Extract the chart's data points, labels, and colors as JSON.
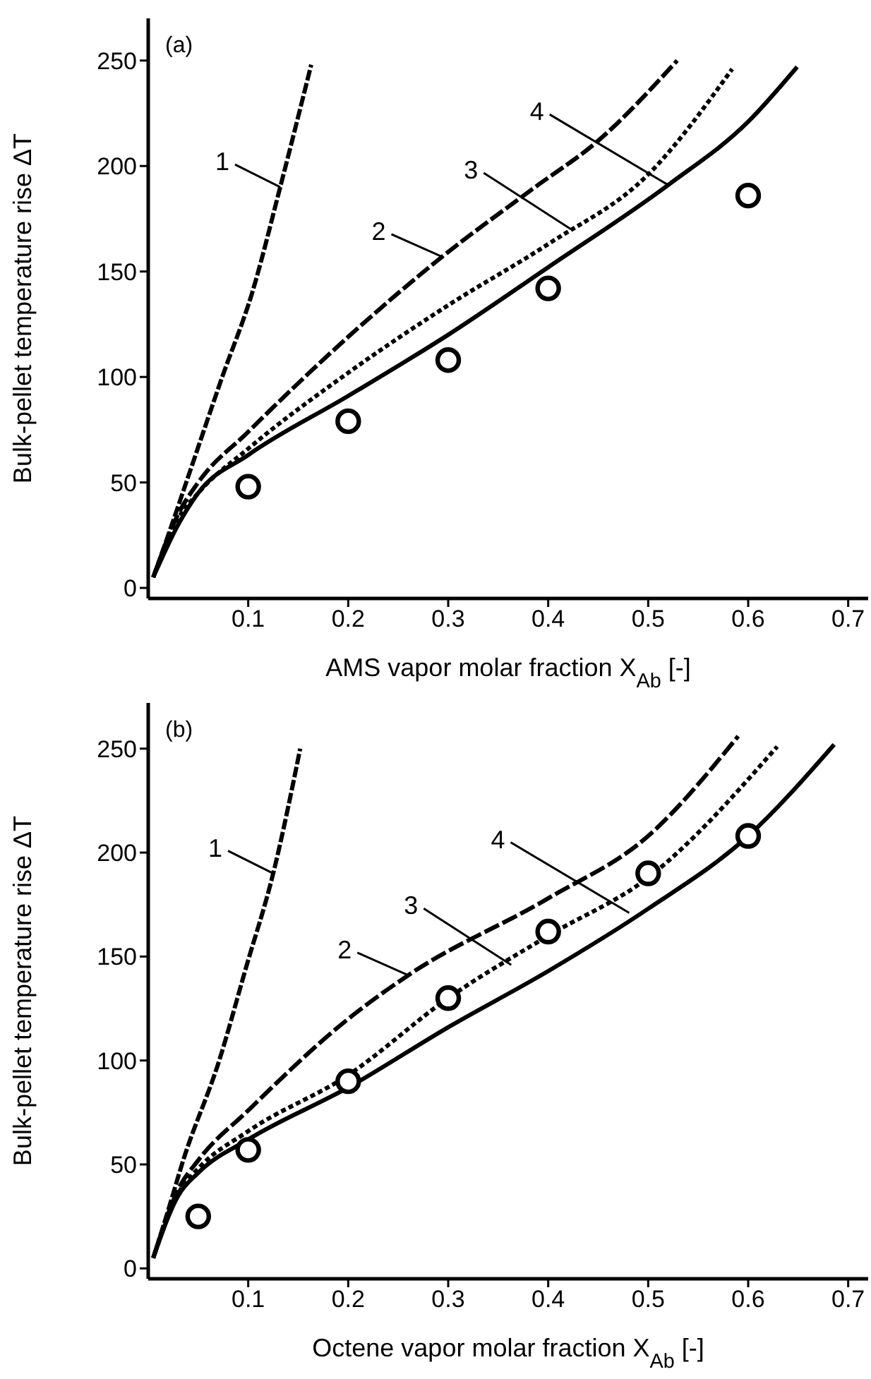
{
  "chart_data": [
    {
      "type": "line",
      "xlabel": "AMS vapor molar fraction X$_{Ab}$ [-]",
      "ylabel": "Bulk-pellet temperature rise ΔT",
      "xlim": [
        0,
        0.72
      ],
      "xticks": [
        0.1,
        0.2,
        0.3,
        0.4,
        0.5,
        0.6,
        0.7
      ],
      "ylim": [
        -5,
        270
      ],
      "yticks": [
        0,
        50,
        100,
        150,
        200,
        250
      ],
      "grid": false,
      "legend": false,
      "series": [
        {
          "type": "line",
          "color": "#000000",
          "line_style": "dashed",
          "marker": "none",
          "x": [
            0.005,
            0.02,
            0.038,
            0.074,
            0.104,
            0.132,
            0.163
          ],
          "values": [
            5,
            25,
            50,
            100,
            140,
            190,
            248
          ]
        },
        {
          "type": "line",
          "color": "#000000",
          "line_style": "dashed",
          "marker": "none",
          "x": [
            0.005,
            0.03,
            0.05,
            0.1,
            0.2,
            0.294,
            0.384,
            0.45,
            0.529
          ],
          "values": [
            5,
            35,
            50,
            74,
            119,
            157,
            189,
            212,
            250
          ]
        },
        {
          "type": "line",
          "color": "#000000",
          "line_style": "dotted",
          "marker": "none",
          "x": [
            0.005,
            0.03,
            0.05,
            0.1,
            0.2,
            0.3,
            0.4,
            0.5,
            0.584
          ],
          "values": [
            5,
            33,
            45,
            66,
            102,
            134,
            163,
            196,
            246
          ]
        },
        {
          "type": "line",
          "color": "#000000",
          "line_style": "solid",
          "marker": "none",
          "x": [
            0.005,
            0.03,
            0.05,
            0.1,
            0.2,
            0.3,
            0.4,
            0.52,
            0.6,
            0.649
          ],
          "values": [
            5,
            30,
            45,
            63,
            91,
            120,
            152,
            191,
            221,
            247
          ]
        },
        {
          "type": "scatter",
          "color": "#000000",
          "marker": "circle",
          "x": [
            0.1,
            0.2,
            0.3,
            0.4,
            0.6
          ],
          "values": [
            48,
            79,
            108,
            142,
            186
          ]
        }
      ],
      "annotations": [
        "(a)",
        {
          "text": "1",
          "x": 0.132,
          "y": 190
        },
        {
          "text": "2",
          "x": 0.294,
          "y": 157
        },
        {
          "text": "3",
          "x": 0.423,
          "y": 170
        },
        {
          "text": "4",
          "x": 0.52,
          "y": 191
        }
      ]
    },
    {
      "type": "line",
      "xlabel": "Octene vapor molar fraction X$_{Ab}$ [-]",
      "ylabel": "Bulk-pellet temperature rise ΔT",
      "xlim": [
        0,
        0.72
      ],
      "xticks": [
        0.1,
        0.2,
        0.3,
        0.4,
        0.5,
        0.6,
        0.7
      ],
      "ylim": [
        -5,
        272
      ],
      "yticks": [
        0,
        50,
        100,
        150,
        200,
        250
      ],
      "grid": false,
      "legend": false,
      "series": [
        {
          "type": "line",
          "color": "#000000",
          "line_style": "dashed",
          "marker": "none",
          "x": [
            0.005,
            0.02,
            0.035,
            0.071,
            0.098,
            0.125,
            0.152
          ],
          "values": [
            5,
            28,
            52,
            100,
            145,
            190,
            250
          ]
        },
        {
          "type": "line",
          "color": "#000000",
          "line_style": "dashed",
          "marker": "none",
          "x": [
            0.005,
            0.03,
            0.05,
            0.1,
            0.2,
            0.26,
            0.4,
            0.5,
            0.59
          ],
          "values": [
            5,
            38,
            52,
            76,
            120,
            141,
            178,
            208,
            256
          ]
        },
        {
          "type": "line",
          "color": "#000000",
          "line_style": "dotted",
          "marker": "none",
          "x": [
            0.005,
            0.03,
            0.05,
            0.1,
            0.2,
            0.3,
            0.4,
            0.5,
            0.629
          ],
          "values": [
            5,
            36,
            48,
            66,
            93,
            130,
            160,
            188,
            251
          ]
        },
        {
          "type": "line",
          "color": "#000000",
          "line_style": "solid",
          "marker": "none",
          "x": [
            0.005,
            0.03,
            0.05,
            0.1,
            0.2,
            0.3,
            0.4,
            0.5,
            0.6,
            0.686
          ],
          "values": [
            5,
            35,
            46,
            62,
            87,
            116,
            143,
            173,
            208,
            252
          ]
        },
        {
          "type": "scatter",
          "color": "#000000",
          "marker": "circle",
          "x": [
            0.05,
            0.1,
            0.2,
            0.3,
            0.4,
            0.5,
            0.6
          ],
          "values": [
            25,
            57,
            90,
            130,
            162,
            190,
            208
          ]
        }
      ],
      "annotations": [
        "(b)",
        {
          "text": "1",
          "x": 0.125,
          "y": 190
        },
        {
          "text": "2",
          "x": 0.26,
          "y": 141
        },
        {
          "text": "3",
          "x": 0.363,
          "y": 146
        },
        {
          "text": "4",
          "x": 0.481,
          "y": 171
        }
      ]
    }
  ]
}
